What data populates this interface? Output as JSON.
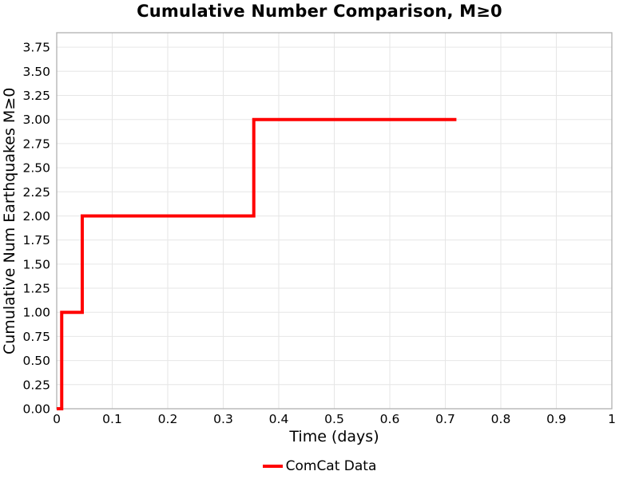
{
  "chart_data": {
    "type": "line",
    "title": "Cumulative Number Comparison, M≥0",
    "xlabel": "Time (days)",
    "ylabel": "Cumulative Num Earthquakes M≥0",
    "xlim": [
      0,
      1
    ],
    "ylim": [
      0,
      3.9
    ],
    "xticks": [
      0,
      0.1,
      0.2,
      0.3,
      0.4,
      0.5,
      0.6,
      0.7,
      0.8,
      0.9,
      1
    ],
    "xtick_labels": [
      "0",
      "0.1",
      "0.2",
      "0.3",
      "0.4",
      "0.5",
      "0.6",
      "0.7",
      "0.8",
      "0.9",
      "1"
    ],
    "yticks": [
      0,
      0.25,
      0.5,
      0.75,
      1.0,
      1.25,
      1.5,
      1.75,
      2.0,
      2.25,
      2.5,
      2.75,
      3.0,
      3.25,
      3.5,
      3.75
    ],
    "ytick_labels": [
      "0.00",
      "0.25",
      "0.50",
      "0.75",
      "1.00",
      "1.25",
      "1.50",
      "1.75",
      "2.00",
      "2.25",
      "2.50",
      "2.75",
      "3.00",
      "3.25",
      "3.50",
      "3.75"
    ],
    "grid": true,
    "legend": {
      "position": "lower-center",
      "entries": [
        "ComCat Data"
      ]
    },
    "series": [
      {
        "name": "ComCat Data",
        "color": "#ff0000",
        "line_width": 4,
        "drawstyle": "steps-post",
        "x": [
          0,
          0.009,
          0.046,
          0.355,
          0.72
        ],
        "y": [
          0,
          1,
          2,
          3,
          3
        ]
      }
    ],
    "style": {
      "background": "#ffffff",
      "grid_color": "#e6e6e6",
      "spine_color": "#b0b0b0",
      "text_color": "#000000"
    }
  }
}
